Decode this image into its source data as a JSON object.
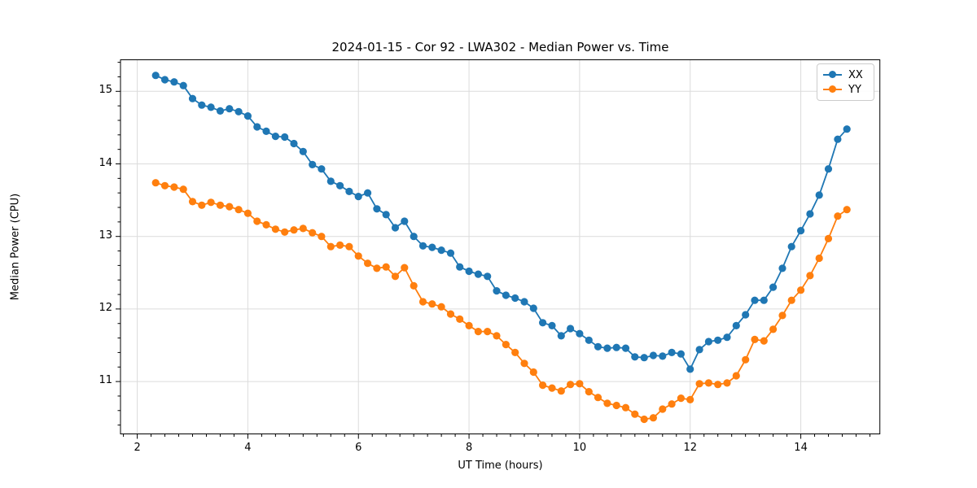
{
  "chart_data": {
    "type": "line",
    "title": "2024-01-15 - Cor 92 - LWA302 - Median Power vs. Time",
    "xlabel": "UT Time (hours)",
    "ylabel": "Median Power (CPU)",
    "x_ticks": [
      2,
      4,
      6,
      8,
      10,
      12,
      14
    ],
    "y_ticks": [
      11,
      12,
      13,
      14,
      15
    ],
    "x_minor_step": 0.25,
    "y_minor_step": 0.2,
    "xlim": [
      1.697,
      15.43
    ],
    "ylim": [
      10.278,
      15.435
    ],
    "grid": true,
    "marker": "circle",
    "legend_position": "upper right",
    "x": [
      2.333,
      2.5,
      2.667,
      2.833,
      3.0,
      3.167,
      3.333,
      3.5,
      3.667,
      3.833,
      4.0,
      4.167,
      4.333,
      4.5,
      4.667,
      4.833,
      5.0,
      5.167,
      5.333,
      5.5,
      5.667,
      5.833,
      6.0,
      6.167,
      6.333,
      6.5,
      6.667,
      6.833,
      7.0,
      7.167,
      7.333,
      7.5,
      7.667,
      7.833,
      8.0,
      8.167,
      8.333,
      8.5,
      8.667,
      8.833,
      9.0,
      9.167,
      9.333,
      9.5,
      9.667,
      9.833,
      10.0,
      10.167,
      10.333,
      10.5,
      10.667,
      10.833,
      11.0,
      11.167,
      11.333,
      11.5,
      11.667,
      11.833,
      12.0,
      12.167,
      12.333,
      12.5,
      12.667,
      12.833,
      13.0,
      13.167,
      13.333,
      13.5,
      13.667,
      13.833,
      14.0,
      14.167,
      14.333,
      14.5,
      14.667,
      14.833
    ],
    "series": [
      {
        "name": "XX",
        "color": "#1f77b4",
        "values": [
          15.22,
          15.16,
          15.13,
          15.08,
          14.9,
          14.81,
          14.78,
          14.73,
          14.76,
          14.72,
          14.66,
          14.51,
          14.45,
          14.38,
          14.37,
          14.28,
          14.17,
          13.99,
          13.93,
          13.76,
          13.7,
          13.62,
          13.55,
          13.6,
          13.38,
          13.3,
          13.12,
          13.21,
          13.0,
          12.87,
          12.85,
          12.81,
          12.77,
          12.58,
          12.52,
          12.48,
          12.45,
          12.25,
          12.19,
          12.15,
          12.1,
          12.01,
          11.81,
          11.77,
          11.63,
          11.73,
          11.66,
          11.57,
          11.48,
          11.46,
          11.47,
          11.46,
          11.34,
          11.33,
          11.36,
          11.35,
          11.4,
          11.38,
          11.17,
          11.44,
          11.55,
          11.57,
          11.61,
          11.77,
          11.92,
          12.12,
          12.12,
          12.3,
          12.56,
          12.86,
          13.08,
          13.31,
          13.57,
          13.93,
          14.34,
          14.48
        ]
      },
      {
        "name": "YY",
        "color": "#ff7f0e",
        "values": [
          13.74,
          13.7,
          13.68,
          13.65,
          13.48,
          13.43,
          13.47,
          13.43,
          13.41,
          13.37,
          13.32,
          13.21,
          13.16,
          13.1,
          13.06,
          13.09,
          13.11,
          13.05,
          13.0,
          12.86,
          12.88,
          12.86,
          12.73,
          12.63,
          12.56,
          12.58,
          12.45,
          12.57,
          12.32,
          12.1,
          12.07,
          12.03,
          11.93,
          11.86,
          11.77,
          11.69,
          11.69,
          11.63,
          11.51,
          11.4,
          11.25,
          11.13,
          10.95,
          10.91,
          10.87,
          10.96,
          10.97,
          10.86,
          10.78,
          10.7,
          10.67,
          10.64,
          10.55,
          10.48,
          10.5,
          10.62,
          10.69,
          10.77,
          10.75,
          10.97,
          10.98,
          10.96,
          10.98,
          11.08,
          11.3,
          11.58,
          11.56,
          11.72,
          11.91,
          12.12,
          12.26,
          12.46,
          12.7,
          12.97,
          13.28,
          13.37
        ]
      }
    ],
    "colors": {
      "grid": "#dcdcdc",
      "spine": "#000000",
      "text": "#000000"
    }
  }
}
